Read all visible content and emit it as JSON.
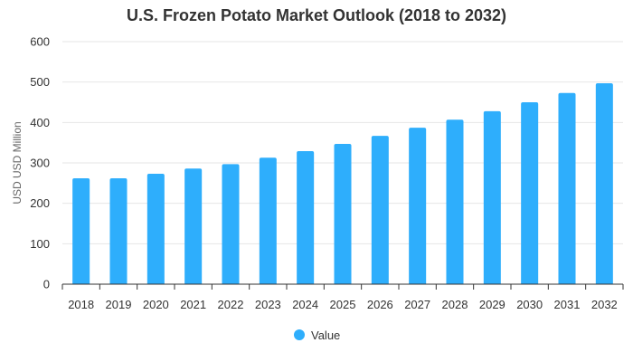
{
  "chart_data": {
    "type": "bar",
    "title": "U.S. Frozen Potato Market Outlook (2018 to 2032)",
    "xlabel": "",
    "ylabel": "USD USD Million",
    "categories": [
      "2018",
      "2019",
      "2020",
      "2021",
      "2022",
      "2023",
      "2024",
      "2025",
      "2026",
      "2027",
      "2028",
      "2029",
      "2030",
      "2031",
      "2032"
    ],
    "series": [
      {
        "name": "Value",
        "values": [
          262,
          262,
          273,
          286,
          297,
          313,
          329,
          347,
          367,
          387,
          407,
          428,
          450,
          473,
          497
        ]
      }
    ],
    "ylim": [
      0,
      600
    ],
    "yticks": [
      0,
      100,
      200,
      300,
      400,
      500,
      600
    ],
    "grid": true,
    "legend_position": "bottom-center",
    "colors": {
      "bar": "#2eaefc",
      "grid": "#e6e6e6",
      "axis": "#333333"
    }
  }
}
